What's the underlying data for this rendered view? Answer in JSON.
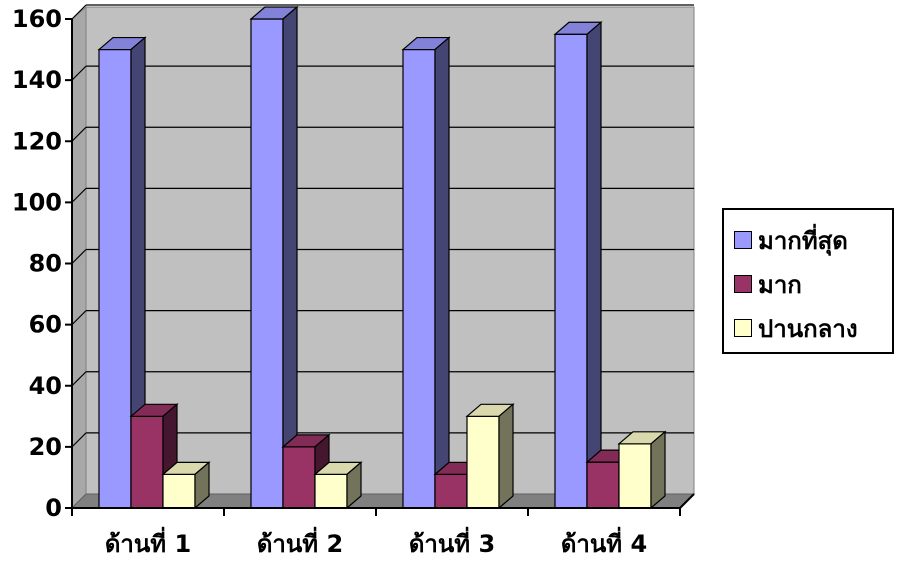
{
  "chart_data": {
    "type": "bar",
    "categories": [
      "ด้านที่ 1",
      "ด้านที่ 2",
      "ด้านที่ 3",
      "ด้านที่ 4"
    ],
    "series": [
      {
        "name": "มากที่สุด",
        "values": [
          150,
          160,
          150,
          155
        ],
        "color": "#9999ff"
      },
      {
        "name": "มาก",
        "values": [
          30,
          20,
          11,
          15
        ],
        "color": "#993366"
      },
      {
        "name": "ปานกลาง",
        "values": [
          11,
          11,
          30,
          21
        ],
        "color": "#ffffcc"
      }
    ],
    "ylim": [
      0,
      160
    ],
    "yticks": [
      "0",
      "20",
      "40",
      "60",
      "80",
      "100",
      "120",
      "140",
      "160"
    ],
    "grid": true,
    "legend_position": "right",
    "three_d": true,
    "plot_background": "#c0c0c0"
  }
}
